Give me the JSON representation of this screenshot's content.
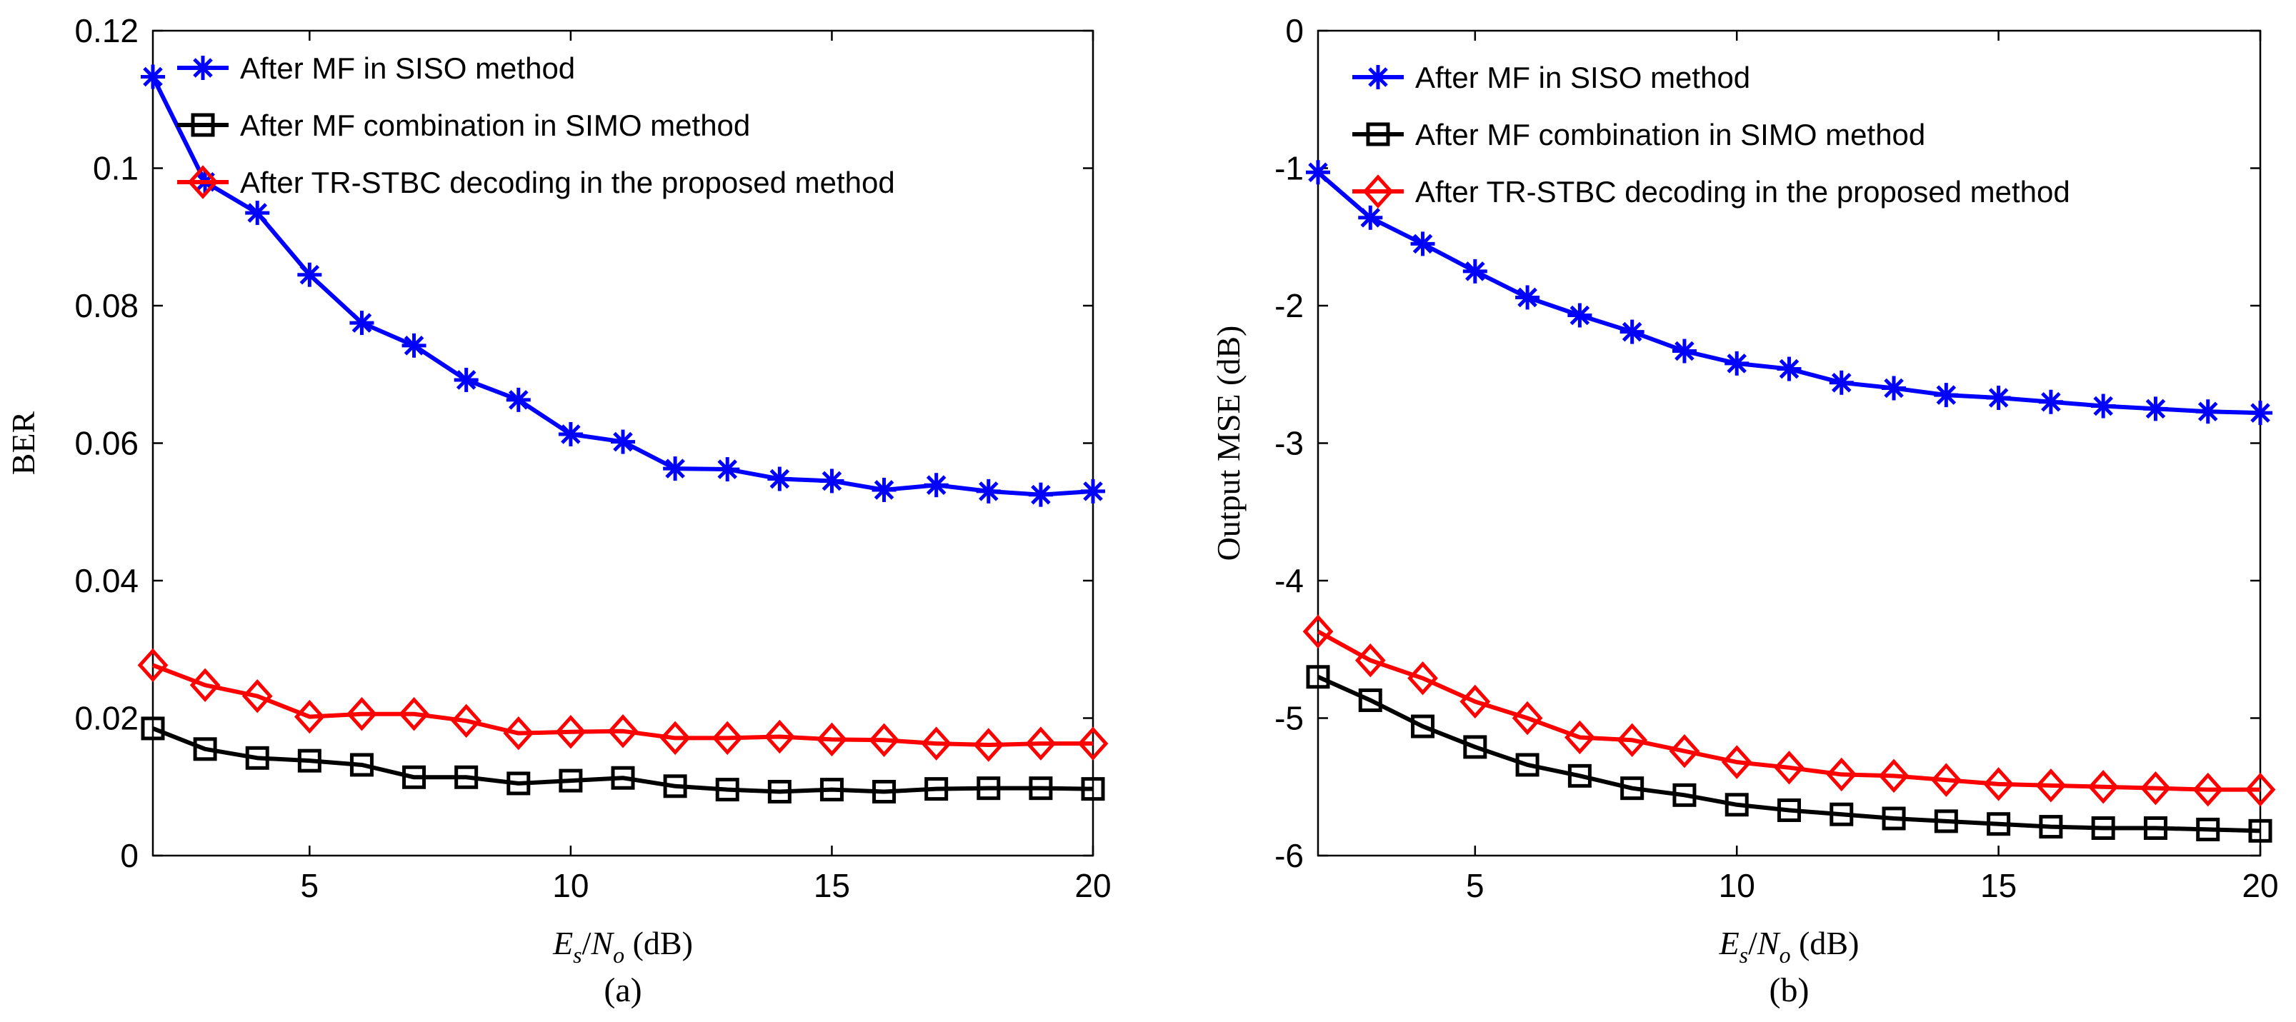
{
  "chart_data": [
    {
      "type": "line",
      "caption": "(a)",
      "title": "",
      "xlabel": {
        "main": "E",
        "sub_main": "s",
        "over": "N",
        "sub_over": "o",
        "unit": "(dB)"
      },
      "ylabel": "BER",
      "xlim": [
        2,
        20
      ],
      "ylim": [
        0,
        0.12
      ],
      "xticks": [
        5,
        10,
        15,
        20
      ],
      "xtick_labels": [
        "5",
        "10",
        "15",
        "20"
      ],
      "yticks": [
        0,
        0.02,
        0.04,
        0.06,
        0.08,
        0.1,
        0.12
      ],
      "ytick_labels": [
        "0",
        "0.02",
        "0.04",
        "0.06",
        "0.08",
        "0.1",
        "0.12"
      ],
      "grid": false,
      "legend_position": "top-left",
      "x": [
        2,
        3,
        4,
        5,
        6,
        7,
        8,
        9,
        10,
        11,
        12,
        13,
        14,
        15,
        16,
        17,
        18,
        19,
        20
      ],
      "series": [
        {
          "name": "After MF in SISO method",
          "color": "#0000ff",
          "marker": "asterisk",
          "values": [
            0.1133,
            0.098,
            0.0935,
            0.0845,
            0.0775,
            0.0742,
            0.0692,
            0.0663,
            0.0613,
            0.0602,
            0.0563,
            0.0562,
            0.0548,
            0.0545,
            0.0532,
            0.0539,
            0.053,
            0.0525,
            0.053
          ]
        },
        {
          "name": "After MF combination in SIMO method",
          "color": "#000000",
          "marker": "square",
          "values": [
            0.0185,
            0.0155,
            0.0142,
            0.0138,
            0.0132,
            0.0114,
            0.0114,
            0.0105,
            0.0109,
            0.0113,
            0.0101,
            0.0096,
            0.0093,
            0.0096,
            0.0093,
            0.0097,
            0.0098,
            0.0098,
            0.0097
          ]
        },
        {
          "name": "After TR-STBC decoding in the proposed method",
          "color": "#ff0000",
          "marker": "diamond",
          "values": [
            0.0277,
            0.0248,
            0.0232,
            0.0202,
            0.0206,
            0.0206,
            0.0196,
            0.0178,
            0.018,
            0.0181,
            0.0171,
            0.0171,
            0.0173,
            0.0169,
            0.0168,
            0.0163,
            0.0161,
            0.0163,
            0.0163
          ]
        }
      ]
    },
    {
      "type": "line",
      "caption": "(b)",
      "title": "",
      "xlabel": {
        "main": "E",
        "sub_main": "s",
        "over": "N",
        "sub_over": "o",
        "unit": "(dB)"
      },
      "ylabel": "Output MSE (dB)",
      "xlim": [
        2,
        20
      ],
      "ylim": [
        -6,
        0
      ],
      "xticks": [
        5,
        10,
        15,
        20
      ],
      "xtick_labels": [
        "5",
        "10",
        "15",
        "20"
      ],
      "yticks": [
        -6,
        -5,
        -4,
        -3,
        -2,
        -1,
        0
      ],
      "ytick_labels": [
        "-6",
        "-5",
        "-4",
        "-3",
        "-2",
        "-1",
        "0"
      ],
      "grid": false,
      "legend_position": "top-left",
      "x": [
        2,
        3,
        4,
        5,
        6,
        7,
        8,
        9,
        10,
        11,
        12,
        13,
        14,
        15,
        16,
        17,
        18,
        19,
        20
      ],
      "series": [
        {
          "name": "After MF in SISO method",
          "color": "#0000ff",
          "marker": "asterisk",
          "values": [
            -1.03,
            -1.36,
            -1.55,
            -1.75,
            -1.94,
            -2.07,
            -2.19,
            -2.33,
            -2.42,
            -2.46,
            -2.56,
            -2.6,
            -2.65,
            -2.67,
            -2.7,
            -2.73,
            -2.75,
            -2.77,
            -2.78
          ]
        },
        {
          "name": "After MF combination in SIMO method",
          "color": "#000000",
          "marker": "square",
          "values": [
            -4.7,
            -4.87,
            -5.06,
            -5.21,
            -5.34,
            -5.42,
            -5.51,
            -5.56,
            -5.63,
            -5.67,
            -5.7,
            -5.73,
            -5.75,
            -5.77,
            -5.79,
            -5.8,
            -5.8,
            -5.81,
            -5.82
          ]
        },
        {
          "name": "After TR-STBC decoding in the proposed method",
          "color": "#ff0000",
          "marker": "diamond",
          "values": [
            -4.37,
            -4.58,
            -4.71,
            -4.88,
            -5.0,
            -5.14,
            -5.16,
            -5.24,
            -5.32,
            -5.36,
            -5.41,
            -5.42,
            -5.45,
            -5.48,
            -5.49,
            -5.5,
            -5.51,
            -5.52,
            -5.52
          ]
        }
      ]
    }
  ]
}
